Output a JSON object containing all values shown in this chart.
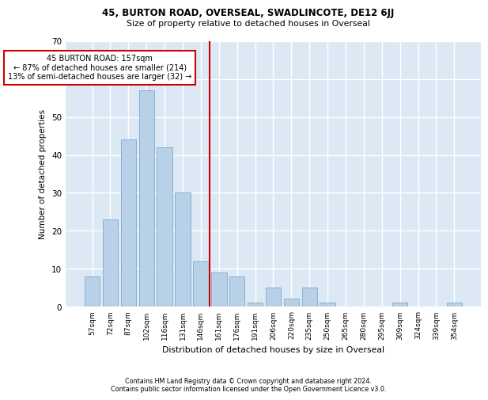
{
  "title1": "45, BURTON ROAD, OVERSEAL, SWADLINCOTE, DE12 6JJ",
  "title2": "Size of property relative to detached houses in Overseal",
  "xlabel": "Distribution of detached houses by size in Overseal",
  "ylabel": "Number of detached properties",
  "bar_labels": [
    "57sqm",
    "72sqm",
    "87sqm",
    "102sqm",
    "116sqm",
    "131sqm",
    "146sqm",
    "161sqm",
    "176sqm",
    "191sqm",
    "206sqm",
    "220sqm",
    "235sqm",
    "250sqm",
    "265sqm",
    "280sqm",
    "295sqm",
    "309sqm",
    "324sqm",
    "339sqm",
    "354sqm"
  ],
  "bar_values": [
    8,
    23,
    44,
    57,
    42,
    30,
    12,
    9,
    8,
    1,
    5,
    2,
    5,
    1,
    0,
    0,
    0,
    1,
    0,
    0,
    1
  ],
  "bar_color": "#b8d0e8",
  "bar_edge_color": "#8ab0ce",
  "background_color": "#dce9f5",
  "grid_color": "#ffffff",
  "vline_color": "#cc0000",
  "annotation_text": "45 BURTON ROAD: 157sqm\n← 87% of detached houses are smaller (214)\n13% of semi-detached houses are larger (32) →",
  "annotation_box_color": "#ffffff",
  "annotation_box_edge_color": "#cc0000",
  "footnote1": "Contains HM Land Registry data © Crown copyright and database right 2024.",
  "footnote2": "Contains public sector information licensed under the Open Government Licence v3.0.",
  "ylim": [
    0,
    70
  ],
  "yticks": [
    0,
    10,
    20,
    30,
    40,
    50,
    60,
    70
  ],
  "vline_pos": 6.5
}
